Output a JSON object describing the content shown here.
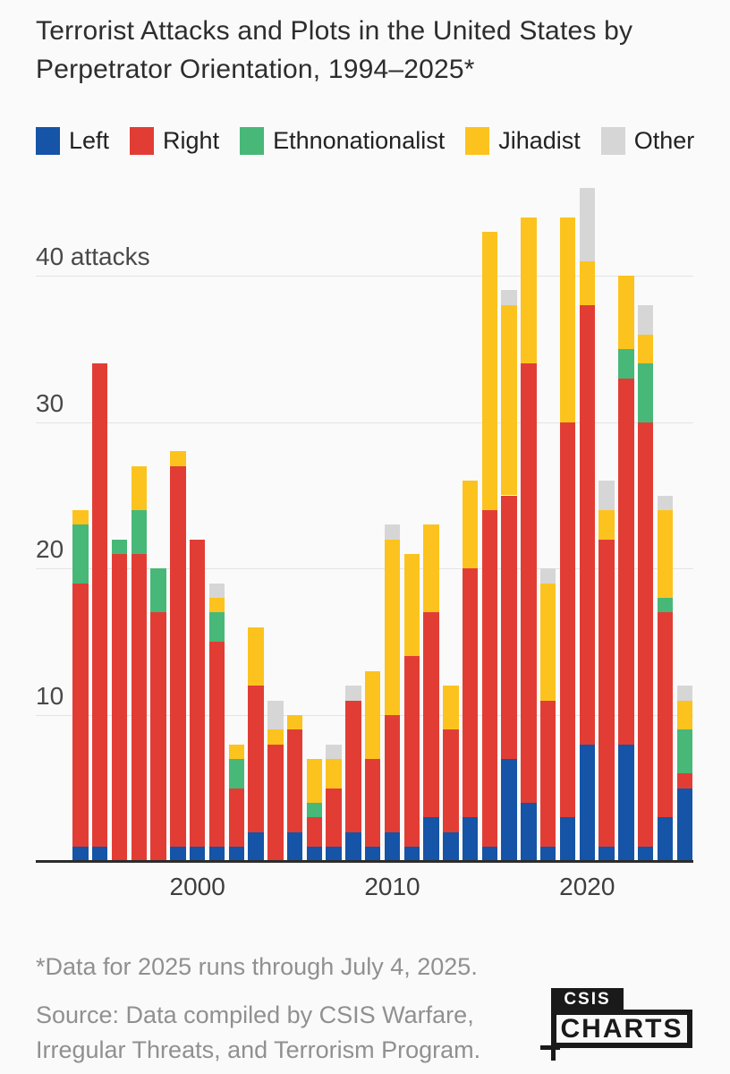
{
  "header": {
    "title_line1": "Terrorist Attacks and Plots in the United States by",
    "title_line2": "Perpetrator Orientation, 1994–2025*"
  },
  "legend": {
    "items": [
      {
        "label": "Left",
        "color": "#1554a6"
      },
      {
        "label": "Right",
        "color": "#e23d35"
      },
      {
        "label": "Ethnonationalist",
        "color": "#47b878"
      },
      {
        "label": "Jihadist",
        "color": "#fcc31e"
      },
      {
        "label": "Other",
        "color": "#d6d6d6"
      }
    ]
  },
  "chart_data": {
    "type": "bar",
    "stacked": true,
    "title": "Terrorist Attacks and Plots in the United States by Perpetrator Orientation, 1994–2025*",
    "ylabel": "attacks",
    "xlabel": "",
    "grid": true,
    "legend_position": "top",
    "ylim": [
      0,
      46
    ],
    "categories": [
      1994,
      1995,
      1996,
      1997,
      1998,
      1999,
      2000,
      2001,
      2002,
      2003,
      2004,
      2005,
      2006,
      2007,
      2008,
      2009,
      2010,
      2011,
      2012,
      2013,
      2014,
      2015,
      2016,
      2017,
      2018,
      2019,
      2020,
      2021,
      2022,
      2023,
      2024,
      2025
    ],
    "series": [
      {
        "name": "Left",
        "color": "#1554a6",
        "values": [
          1,
          1,
          0,
          0,
          0,
          1,
          1,
          1,
          1,
          2,
          0,
          2,
          1,
          1,
          2,
          1,
          2,
          1,
          3,
          2,
          3,
          1,
          7,
          4,
          1,
          3,
          8,
          1,
          8,
          1,
          3,
          5
        ]
      },
      {
        "name": "Right",
        "color": "#e23d35",
        "values": [
          18,
          33,
          21,
          21,
          17,
          26,
          21,
          14,
          4,
          10,
          8,
          7,
          2,
          4,
          9,
          6,
          8,
          13,
          14,
          7,
          17,
          23,
          18,
          30,
          10,
          27,
          30,
          21,
          25,
          29,
          14,
          1
        ]
      },
      {
        "name": "Ethnonationalist",
        "color": "#47b878",
        "values": [
          4,
          0,
          1,
          3,
          3,
          0,
          0,
          2,
          2,
          0,
          0,
          0,
          1,
          0,
          0,
          0,
          0,
          0,
          0,
          0,
          0,
          0,
          0,
          0,
          0,
          0,
          0,
          0,
          2,
          4,
          1,
          3
        ]
      },
      {
        "name": "Jihadist",
        "color": "#fcc31e",
        "values": [
          1,
          0,
          0,
          3,
          0,
          1,
          0,
          1,
          1,
          4,
          1,
          1,
          3,
          2,
          0,
          6,
          12,
          7,
          6,
          3,
          6,
          19,
          13,
          10,
          8,
          14,
          3,
          2,
          5,
          2,
          6,
          2
        ]
      },
      {
        "name": "Other",
        "color": "#d6d6d6",
        "values": [
          0,
          0,
          0,
          0,
          0,
          0,
          0,
          1,
          0,
          0,
          2,
          0,
          0,
          1,
          1,
          0,
          1,
          0,
          0,
          0,
          0,
          0,
          1,
          0,
          1,
          0,
          5,
          2,
          0,
          2,
          1,
          1
        ]
      }
    ],
    "y_axis": {
      "ticks": [
        {
          "value": 10,
          "label": "10"
        },
        {
          "value": 20,
          "label": "20"
        },
        {
          "value": 30,
          "label": "30"
        },
        {
          "value": 40,
          "label": "40 attacks"
        }
      ]
    },
    "x_axis": {
      "ticks": [
        {
          "value": 2000,
          "label": "2000"
        },
        {
          "value": 2010,
          "label": "2010"
        },
        {
          "value": 2020,
          "label": "2020"
        }
      ]
    }
  },
  "footer": {
    "footnote": "*Data for 2025 runs through July 4, 2025.",
    "source_line1": "Source: Data compiled by CSIS Warfare,",
    "source_line2": "Irregular Threats, and Terrorism Program.",
    "logo_top": "CSIS",
    "logo_bottom": "CHARTS"
  }
}
